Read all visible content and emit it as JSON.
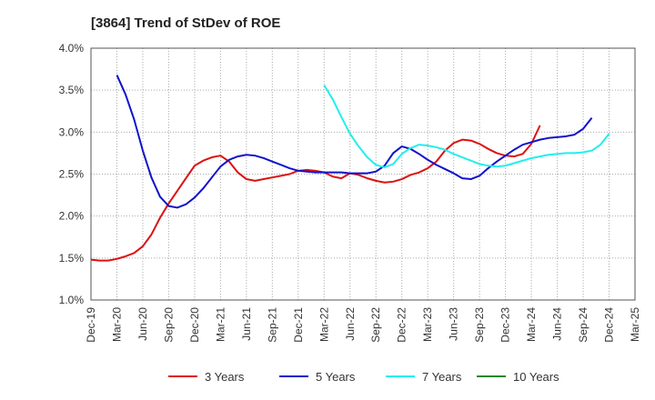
{
  "chart_data": {
    "type": "line",
    "title": "[3864]  Trend of StDev of ROE",
    "xlabel": "",
    "ylabel": "",
    "x_ticks": [
      "Dec-19",
      "Mar-20",
      "Jun-20",
      "Sep-20",
      "Dec-20",
      "Mar-21",
      "Jun-21",
      "Sep-21",
      "Dec-21",
      "Mar-22",
      "Jun-22",
      "Sep-22",
      "Dec-22",
      "Mar-23",
      "Jun-23",
      "Sep-23",
      "Dec-23",
      "Mar-24",
      "Jun-24",
      "Sep-24",
      "Dec-24",
      "Mar-25"
    ],
    "y_ticks": [
      "1.0%",
      "1.5%",
      "2.0%",
      "2.5%",
      "3.0%",
      "3.5%",
      "4.0%"
    ],
    "ylim": [
      1.0,
      4.0
    ],
    "grid": true,
    "legend_position": "bottom",
    "series": [
      {
        "name": "3 Years",
        "color": "#dd1111",
        "start_index": 0,
        "values": [
          1.48,
          1.47,
          1.47,
          1.49,
          1.52,
          1.56,
          1.64,
          1.78,
          1.98,
          2.15,
          2.3,
          2.45,
          2.6,
          2.66,
          2.7,
          2.72,
          2.65,
          2.52,
          2.44,
          2.42,
          2.44,
          2.46,
          2.48,
          2.5,
          2.54,
          2.55,
          2.54,
          2.52,
          2.47,
          2.45,
          2.51,
          2.49,
          2.45,
          2.42,
          2.4,
          2.41,
          2.44,
          2.49,
          2.52,
          2.57,
          2.65,
          2.78,
          2.87,
          2.91,
          2.9,
          2.86,
          2.8,
          2.75,
          2.72,
          2.71,
          2.74,
          2.86,
          3.08
        ]
      },
      {
        "name": "5 Years",
        "color": "#1111cc",
        "start_index": 3,
        "values": [
          3.68,
          3.45,
          3.15,
          2.78,
          2.46,
          2.23,
          2.12,
          2.1,
          2.14,
          2.22,
          2.33,
          2.46,
          2.59,
          2.67,
          2.71,
          2.73,
          2.72,
          2.69,
          2.65,
          2.61,
          2.57,
          2.54,
          2.53,
          2.52,
          2.52,
          2.52,
          2.52,
          2.51,
          2.51,
          2.51,
          2.53,
          2.6,
          2.75,
          2.83,
          2.8,
          2.74,
          2.67,
          2.61,
          2.56,
          2.51,
          2.45,
          2.44,
          2.48,
          2.57,
          2.65,
          2.72,
          2.79,
          2.85,
          2.88,
          2.91,
          2.93,
          2.94,
          2.95,
          2.97,
          3.04,
          3.17
        ]
      },
      {
        "name": "7 Years",
        "color": "#22eeee",
        "start_index": 27,
        "values": [
          3.56,
          3.39,
          3.18,
          2.98,
          2.83,
          2.7,
          2.61,
          2.58,
          2.62,
          2.74,
          2.81,
          2.85,
          2.84,
          2.82,
          2.79,
          2.74,
          2.7,
          2.66,
          2.62,
          2.6,
          2.59,
          2.6,
          2.63,
          2.66,
          2.69,
          2.71,
          2.73,
          2.74,
          2.75,
          2.75,
          2.76,
          2.78,
          2.85,
          2.98
        ]
      },
      {
        "name": "10 Years",
        "color": "#228822",
        "start_index": 0,
        "values": []
      }
    ]
  }
}
